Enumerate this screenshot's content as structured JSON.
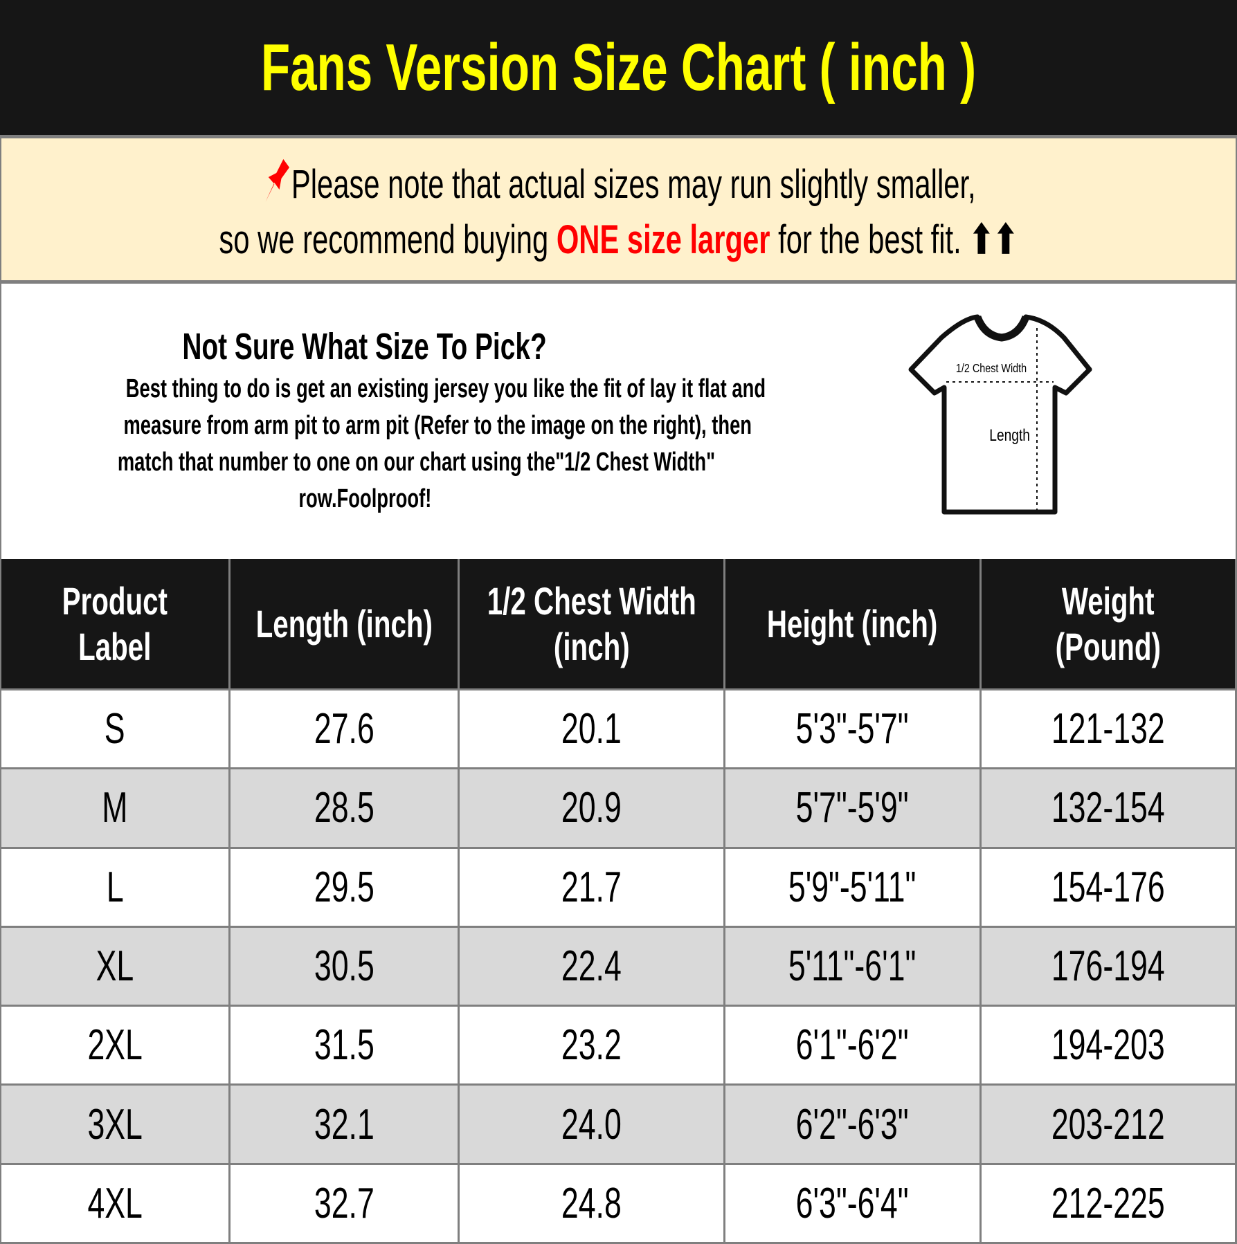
{
  "title": "Fans Version Size Chart ( inch )",
  "note": {
    "icon": "pushpin-icon",
    "line1": "Please note that actual sizes may run slightly smaller,",
    "line2_a": "so we recommend buying ",
    "line2_highlight": "ONE size larger",
    "line2_b": " for the best fit.",
    "arrows": "⬆⬆",
    "highlight_color": "#ff0000",
    "background": "#fff1cc"
  },
  "info": {
    "heading": "Not Sure What Size To Pick?",
    "lines": [
      "Best thing to do is get an existing jersey you like the fit of lay it flat and",
      "measure from arm pit to arm pit (Refer to the image on the right), then",
      "match that number to one on our chart using the\"1/2 Chest Width\"",
      "row.Foolproof!"
    ],
    "diagram": {
      "chest_label": "1/2 Chest Width",
      "length_label": "Length"
    }
  },
  "table": {
    "headers": [
      "Product\nLabel",
      "Length (inch)",
      "1/2 Chest Width\n(inch)",
      "Height (inch)",
      "Weight\n(Pound)"
    ],
    "rows": [
      [
        "S",
        "27.6",
        "20.1",
        "5'3\"-5'7\"",
        "121-132"
      ],
      [
        "M",
        "28.5",
        "20.9",
        "5'7\"-5'9\"",
        "132-154"
      ],
      [
        "L",
        "29.5",
        "21.7",
        "5'9\"-5'11\"",
        "154-176"
      ],
      [
        "XL",
        "30.5",
        "22.4",
        "5'11\"-6'1\"",
        "176-194"
      ],
      [
        "2XL",
        "31.5",
        "23.2",
        "6'1\"-6'2\"",
        "194-203"
      ],
      [
        "3XL",
        "32.1",
        "24.0",
        "6'2\"-6'3\"",
        "203-212"
      ],
      [
        "4XL",
        "32.7",
        "24.8",
        "6'3\"-6'4\"",
        "212-225"
      ]
    ]
  },
  "colors": {
    "title": "#ffff00",
    "header_bg": "#161616",
    "alt_row": "#d9d9d9"
  }
}
